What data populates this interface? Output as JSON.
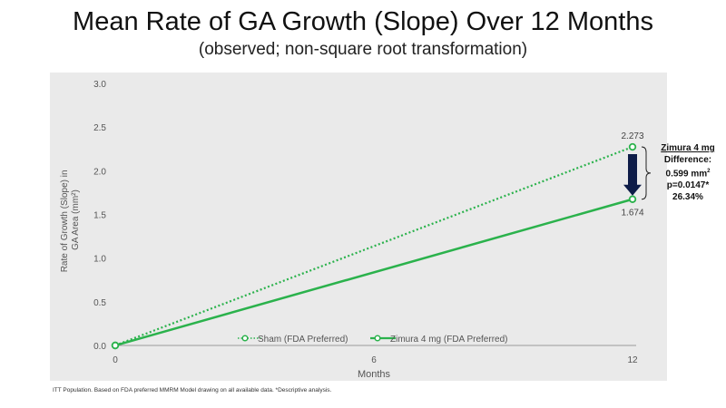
{
  "title": "Mean Rate of GA Growth (Slope) Over 12 Months",
  "subtitle": "(observed; non-square root transformation)",
  "footnote": "ITT Population.  Based on FDA preferred MMRM Model drawing on all available data. *Descriptive analysis.",
  "annotation": {
    "title": "Zimura 4 mg",
    "line1": "Difference:",
    "line2": "0.599 mm",
    "line2_sup": "2",
    "line3": "p=0.0147*",
    "line4": "26.34%"
  },
  "colors": {
    "series": "#2bb24c",
    "plot_bg": "#eaeaea",
    "arrow": "#0e1c48"
  },
  "chart_data": {
    "type": "line",
    "xlabel": "Months",
    "ylabel": "Rate of Growth (Slope) in GA Area (mm²)",
    "xlim": [
      0,
      12
    ],
    "ylim": [
      0,
      3.0
    ],
    "xticks": [
      0,
      6,
      12
    ],
    "yticks": [
      0.0,
      0.5,
      1.0,
      1.5,
      2.0,
      2.5,
      3.0
    ],
    "ytick_labels": [
      "0.0",
      "0.5",
      "1.0",
      "1.5",
      "2.0",
      "2.5",
      "3.0"
    ],
    "xtick_labels": [
      "0",
      "6",
      "12"
    ],
    "legend_position": "bottom-center",
    "series": [
      {
        "name": "Sham (FDA Preferred)",
        "style": "dotted",
        "x": [
          0,
          12
        ],
        "y": [
          0,
          2.273
        ],
        "end_label": "2.273"
      },
      {
        "name": "Zimura 4 mg (FDA Preferred)",
        "style": "solid",
        "x": [
          0,
          12
        ],
        "y": [
          0,
          1.674
        ],
        "end_label": "1.674"
      }
    ]
  }
}
